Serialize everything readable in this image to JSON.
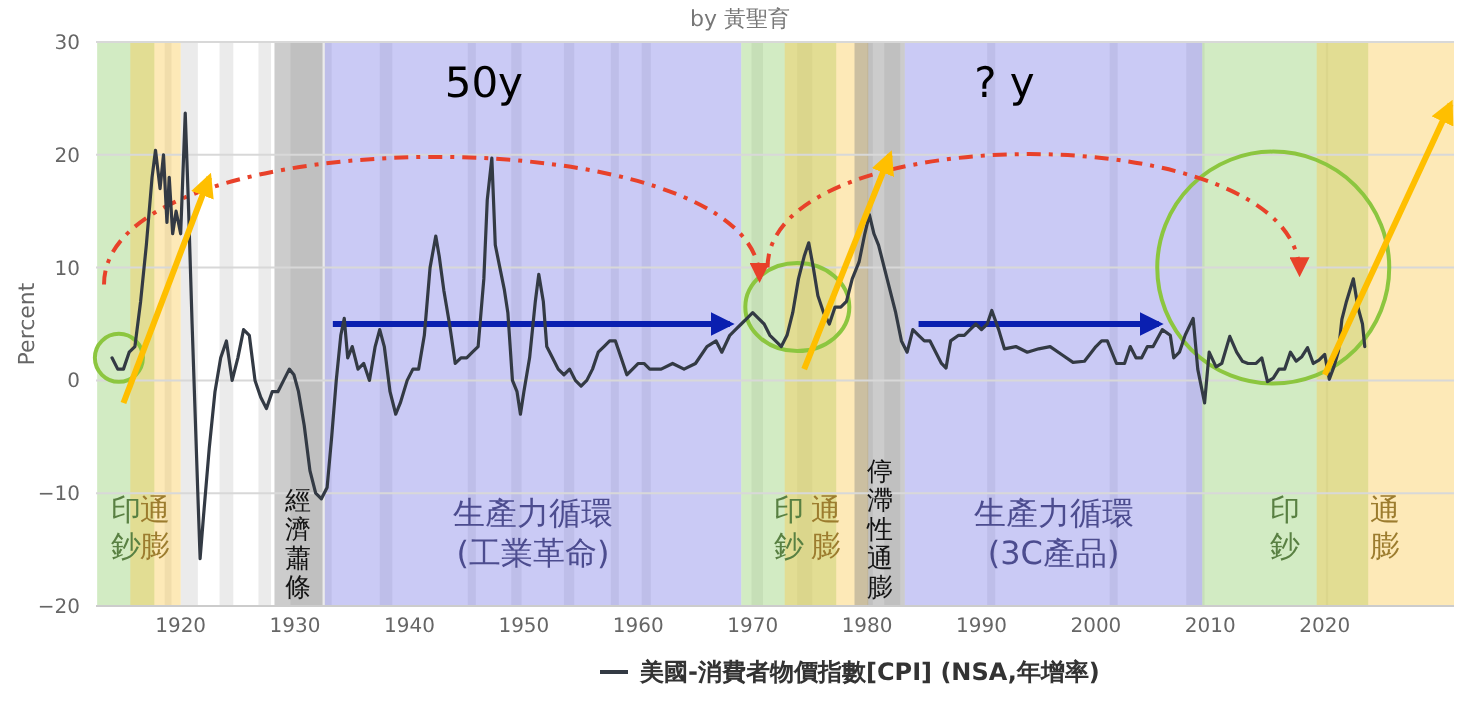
{
  "chart_data": {
    "type": "line",
    "subtitle": "by 黃聖育",
    "ylabel": "Percent",
    "annotations": [
      "50y",
      "? y"
    ],
    "x": [
      1914.0,
      1914.5,
      1915.0,
      1915.5,
      1916.0,
      1916.5,
      1917.0,
      1917.5,
      1917.8,
      1918.2,
      1918.5,
      1918.8,
      1919.0,
      1919.3,
      1919.6,
      1920.0,
      1920.4,
      1920.7,
      1921.0,
      1921.5,
      1921.7,
      1922.0,
      1922.5,
      1923.0,
      1923.5,
      1924.0,
      1924.5,
      1925.0,
      1925.5,
      1926.0,
      1926.5,
      1927.0,
      1927.5,
      1928.0,
      1928.5,
      1929.0,
      1929.5,
      1929.9,
      1930.3,
      1930.8,
      1931.3,
      1931.8,
      1932.3,
      1932.8,
      1933.2,
      1933.6,
      1934.0,
      1934.3,
      1934.6,
      1935.0,
      1935.5,
      1936.0,
      1936.5,
      1937.0,
      1937.4,
      1937.8,
      1938.3,
      1938.8,
      1939.2,
      1939.8,
      1940.3,
      1940.8,
      1941.3,
      1941.8,
      1942.3,
      1942.6,
      1943.0,
      1943.5,
      1944.0,
      1944.5,
      1945.0,
      1945.5,
      1946.0,
      1946.5,
      1946.8,
      1947.2,
      1947.5,
      1947.9,
      1948.3,
      1948.6,
      1949.0,
      1949.4,
      1949.7,
      1950.0,
      1950.5,
      1951.0,
      1951.3,
      1951.7,
      1952.0,
      1952.5,
      1953.0,
      1953.5,
      1954.0,
      1954.5,
      1955.0,
      1955.5,
      1956.0,
      1956.5,
      1957.0,
      1957.5,
      1958.0,
      1958.5,
      1959.0,
      1959.5,
      1960.0,
      1960.5,
      1961.0,
      1962.0,
      1963.0,
      1964.0,
      1965.0,
      1966.0,
      1966.8,
      1967.3,
      1968.0,
      1968.5,
      1969.0,
      1969.5,
      1970.0,
      1970.5,
      1971.0,
      1971.5,
      1972.0,
      1972.5,
      1973.0,
      1973.5,
      1974.0,
      1974.5,
      1974.9,
      1975.3,
      1975.7,
      1976.2,
      1976.7,
      1977.2,
      1977.7,
      1978.2,
      1978.7,
      1979.3,
      1979.8,
      1980.2,
      1980.6,
      1981.0,
      1981.5,
      1982.0,
      1982.5,
      1983.0,
      1983.5,
      1984.0,
      1984.5,
      1985.0,
      1985.5,
      1986.0,
      1986.5,
      1986.9,
      1987.3,
      1988.0,
      1988.5,
      1989.0,
      1989.5,
      1990.0,
      1990.5,
      1990.9,
      1991.5,
      1992.0,
      1993.0,
      1994.0,
      1995.0,
      1996.0,
      1997.0,
      1998.0,
      1999.0,
      2000.0,
      2000.5,
      2001.0,
      2001.8,
      2002.5,
      2003.0,
      2003.5,
      2004.0,
      2004.5,
      2005.0,
      2005.8,
      2006.5,
      2006.8,
      2007.3,
      2007.8,
      2008.5,
      2008.9,
      2009.2,
      2009.5,
      2009.9,
      2010.5,
      2011.0,
      2011.7,
      2012.3,
      2012.8,
      2013.3,
      2014.0,
      2014.5,
      2015.0,
      2015.5,
      2016.0,
      2016.5,
      2017.0,
      2017.5,
      2018.0,
      2018.5,
      2019.0,
      2019.5,
      2020.0,
      2020.4,
      2020.8,
      2021.2,
      2021.5,
      2021.9,
      2022.5,
      2022.9,
      2023.3,
      2023.5
    ],
    "series": [
      {
        "name": "美國-消費者物價指數[CPI] (NSA,年增率)",
        "color": "#333a44",
        "values": [
          2.0,
          1.0,
          1.0,
          2.5,
          3,
          7,
          12,
          18,
          20.4,
          17,
          20,
          14,
          18,
          13,
          15,
          13,
          23.7,
          15,
          5,
          -10,
          -15.8,
          -12,
          -6,
          -1,
          2,
          3.5,
          0,
          2,
          4.5,
          4,
          0,
          -1.5,
          -2.5,
          -1,
          -1,
          0,
          1,
          0.5,
          -1,
          -4,
          -8,
          -10,
          -10.5,
          -9.5,
          -5,
          0,
          4,
          5.5,
          2,
          3,
          1,
          1.5,
          0,
          3,
          4.5,
          3,
          -1,
          -3,
          -2,
          0,
          1,
          1,
          4,
          10,
          12.8,
          11,
          8,
          5,
          1.5,
          2,
          2,
          2.5,
          3,
          9,
          16,
          19.7,
          12,
          10,
          8,
          6,
          0,
          -1,
          -3,
          -1,
          2,
          7,
          9.4,
          7,
          3,
          2,
          1,
          0.5,
          1,
          0,
          -0.5,
          0,
          1,
          2.5,
          3,
          3.5,
          3.5,
          2,
          0.5,
          1,
          1.5,
          1.5,
          1,
          1,
          1.5,
          1,
          1.5,
          3,
          3.5,
          2.5,
          4,
          4.5,
          5,
          5.5,
          6,
          5.5,
          5,
          4,
          3.5,
          3,
          4,
          6,
          9,
          11,
          12.2,
          10,
          7.5,
          6,
          5,
          6.5,
          6.5,
          7,
          9,
          10.5,
          13,
          14.7,
          13,
          12,
          10,
          8,
          6,
          3.5,
          2.5,
          4.5,
          4,
          3.5,
          3.5,
          2.5,
          1.5,
          1.1,
          3.5,
          4,
          4,
          4.5,
          5,
          4.5,
          5,
          6.2,
          4.5,
          2.8,
          3,
          2.5,
          2.8,
          3,
          2.3,
          1.6,
          1.7,
          3,
          3.5,
          3.5,
          1.5,
          1.5,
          3,
          2,
          2,
          3,
          3,
          4.5,
          4,
          2,
          2.5,
          4,
          5.5,
          1,
          -0.5,
          -2,
          2.5,
          1.2,
          1.5,
          3.9,
          2.5,
          1.7,
          1.5,
          1.5,
          2,
          -0.1,
          0.2,
          1,
          1,
          2.5,
          1.7,
          2.1,
          2.9,
          1.5,
          1.8,
          2.3,
          0.1,
          1.2,
          2.6,
          5.4,
          7,
          9,
          6.5,
          5,
          3
        ]
      }
    ],
    "xlim": [
      1912.6,
      2031.3
    ],
    "ylim": [
      -20,
      30
    ],
    "xticks": [
      1920,
      1930,
      1940,
      1950,
      1960,
      1970,
      1980,
      1990,
      2000,
      2010,
      2020
    ],
    "yticks": [
      -20,
      -10,
      0,
      10,
      20,
      30
    ],
    "grid": "y",
    "legend": "bottom",
    "bands": [
      {
        "axis": "x",
        "from": 1918.6,
        "to": 1919.2,
        "label": null,
        "color": "#e6e6e6"
      },
      {
        "axis": "x",
        "from": 1920.0,
        "to": 1921.5,
        "label": null,
        "color": "#e6e6e6"
      },
      {
        "axis": "x",
        "from": 1923.4,
        "to": 1924.6,
        "label": null,
        "color": "#e6e6e6"
      },
      {
        "axis": "x",
        "from": 1926.8,
        "to": 1927.9,
        "label": null,
        "color": "#e6e6e6"
      },
      {
        "axis": "x",
        "from": 1929.6,
        "to": 1933.2,
        "label": null,
        "color": "#e6e6e6"
      },
      {
        "axis": "x",
        "from": 1937.4,
        "to": 1938.5,
        "label": null,
        "color": "#e6e6e6"
      },
      {
        "axis": "x",
        "from": 1945.1,
        "to": 1945.8,
        "label": null,
        "color": "#e6e6e6"
      },
      {
        "axis": "x",
        "from": 1948.9,
        "to": 1949.8,
        "label": null,
        "color": "#e6e6e6"
      },
      {
        "axis": "x",
        "from": 1953.5,
        "to": 1954.4,
        "label": null,
        "color": "#e6e6e6"
      },
      {
        "axis": "x",
        "from": 1957.6,
        "to": 1958.3,
        "label": null,
        "color": "#e6e6e6"
      },
      {
        "axis": "x",
        "from": 1960.3,
        "to": 1961.1,
        "label": null,
        "color": "#e6e6e6"
      },
      {
        "axis": "x",
        "from": 1969.9,
        "to": 1970.9,
        "label": null,
        "color": "#e6e6e6"
      },
      {
        "axis": "x",
        "from": 1973.9,
        "to": 1975.2,
        "label": null,
        "color": "#e6e6e6"
      },
      {
        "axis": "x",
        "from": 1980.0,
        "to": 1980.5,
        "label": null,
        "color": "#e6e6e6"
      },
      {
        "axis": "x",
        "from": 1981.5,
        "to": 1982.9,
        "label": null,
        "color": "#e6e6e6"
      },
      {
        "axis": "x",
        "from": 1990.5,
        "to": 1991.2,
        "label": null,
        "color": "#e6e6e6"
      },
      {
        "axis": "x",
        "from": 2001.2,
        "to": 2001.9,
        "label": null,
        "color": "#e6e6e6"
      },
      {
        "axis": "x",
        "from": 2007.9,
        "to": 2009.5,
        "label": null,
        "color": "#e6e6e6"
      },
      {
        "axis": "x",
        "from": 2020.1,
        "to": 2020.3,
        "label": null,
        "color": "#e6e6e6"
      },
      {
        "axis": "x",
        "from": 1912.7,
        "to": 1917.7,
        "label": "印鈔",
        "color": "#8fce6a"
      },
      {
        "axis": "x",
        "from": 1915.6,
        "to": 1920.0,
        "label": "通膨",
        "color": "#fbc84a"
      },
      {
        "axis": "x",
        "from": 1928.2,
        "to": 1932.4,
        "label": "經濟蕭條",
        "color": "#7f7f7f"
      },
      {
        "axis": "x",
        "from": 1932.6,
        "to": 1969.0,
        "label": "生產力循環\n(工業革命)",
        "color": "#7b7be6"
      },
      {
        "axis": "x",
        "from": 1969.0,
        "to": 1977.3,
        "label": "印鈔",
        "color": "#8fce6a"
      },
      {
        "axis": "x",
        "from": 1972.8,
        "to": 1980.1,
        "label": "通膨",
        "color": "#fbc84a"
      },
      {
        "axis": "x",
        "from": 1978.9,
        "to": 1983.3,
        "label": "停滯性通膨",
        "color": "#7f7f7f"
      },
      {
        "axis": "x",
        "from": 1983.3,
        "to": 2009.3,
        "label": "生產力循環\n(3C產品)",
        "color": "#7b7be6"
      },
      {
        "axis": "x",
        "from": 2009.3,
        "to": 2023.8,
        "label": "印鈔",
        "color": "#8fce6a"
      },
      {
        "axis": "x",
        "from": 2019.3,
        "to": 2031.3,
        "label": "通膨",
        "color": "#fbc84a"
      }
    ]
  }
}
